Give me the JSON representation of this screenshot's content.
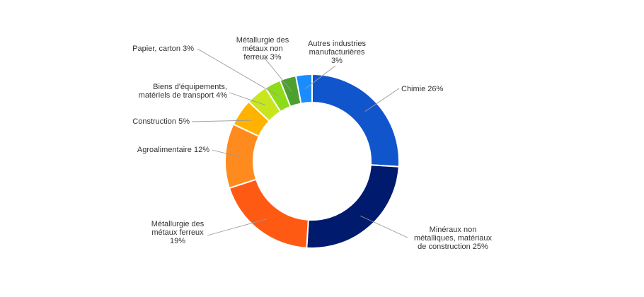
{
  "chart_data": {
    "type": "pie",
    "donut": true,
    "start_angle_deg": 0,
    "direction": "clockwise",
    "slices": [
      {
        "label": "Chimie",
        "value": 26,
        "display": [
          "Chimie 26%"
        ],
        "color": "#1155CC"
      },
      {
        "label": "Minéraux non métalliques, matériaux de construction",
        "value": 25,
        "display": [
          "Minéraux non",
          "métalliques, matériaux",
          "de construction 25%"
        ],
        "color": "#001A6E"
      },
      {
        "label": "Métallurgie des métaux ferreux",
        "value": 19,
        "display": [
          "Métallurgie des",
          "métaux ferreux",
          "19%"
        ],
        "color": "#FF5A14"
      },
      {
        "label": "Agroalimentaire",
        "value": 12,
        "display": [
          "Agroalimentaire 12%"
        ],
        "color": "#FF8A1E"
      },
      {
        "label": "Construction",
        "value": 5,
        "display": [
          "Construction 5%"
        ],
        "color": "#FFB300"
      },
      {
        "label": "Biens d'équipements, matériels de transport",
        "value": 4,
        "display": [
          "Biens d'équipements,",
          "matériels de transport 4%"
        ],
        "color": "#C8E61E"
      },
      {
        "label": "Papier, carton",
        "value": 3,
        "display": [
          "Papier, carton 3%"
        ],
        "color": "#8EDB1A"
      },
      {
        "label": "Métallurgie des métaux non ferreux",
        "value": 3,
        "display": [
          "Métallurgie des",
          "métaux non",
          "ferreux 3%"
        ],
        "color": "#4EA02E"
      },
      {
        "label": "Autres industries manufacturières",
        "value": 3,
        "display": [
          "Autres industries",
          "manufacturières",
          "3%"
        ],
        "color": "#1A8CFF"
      }
    ]
  }
}
